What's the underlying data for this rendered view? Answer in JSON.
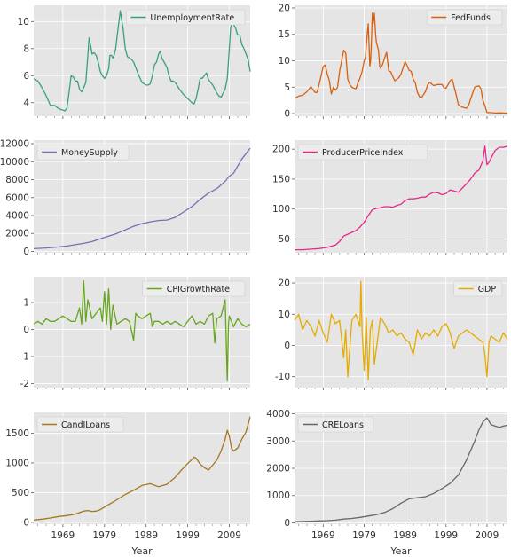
{
  "figure": {
    "background": "#ffffff",
    "panel_background": "#e5e5e5",
    "grid_color": "#ffffff",
    "xlabel": "Year"
  },
  "chart_data": [
    {
      "type": "line",
      "series": [
        {
          "name": "UnemploymentRate",
          "color": "#3a9e83"
        }
      ],
      "xlim": [
        1962,
        2014
      ],
      "ylim": [
        3.0,
        11.2
      ],
      "yticks": [
        4,
        6,
        8,
        10
      ],
      "xticks": [
        1969,
        1979,
        1989,
        1999,
        2009
      ],
      "grid": true,
      "legend": "top-right",
      "x": [
        1962.0,
        1963.0,
        1964.0,
        1965.0,
        1966.0,
        1967.0,
        1967.8,
        1968.5,
        1969.5,
        1970.0,
        1970.5,
        1971.0,
        1971.5,
        1972.0,
        1972.5,
        1973.0,
        1973.5,
        1974.0,
        1974.5,
        1975.0,
        1975.3,
        1975.7,
        1976.0,
        1976.5,
        1977.0,
        1977.5,
        1978.0,
        1978.5,
        1979.0,
        1979.5,
        1980.0,
        1980.3,
        1980.7,
        1981.0,
        1981.3,
        1981.7,
        1982.0,
        1982.4,
        1982.8,
        1983.0,
        1983.5,
        1984.0,
        1984.5,
        1985.0,
        1985.5,
        1986.0,
        1987.0,
        1988.0,
        1989.0,
        1989.5,
        1990.0,
        1990.5,
        1991.0,
        1991.5,
        1992.0,
        1992.4,
        1992.8,
        1993.5,
        1994.0,
        1994.5,
        1995.0,
        1995.5,
        1996.0,
        1997.0,
        1998.0,
        1999.0,
        2000.0,
        2000.5,
        2001.0,
        2001.5,
        2002.0,
        2002.5,
        2003.0,
        2003.5,
        2004.0,
        2004.5,
        2005.0,
        2005.5,
        2006.0,
        2006.5,
        2007.0,
        2007.5,
        2008.0,
        2008.5,
        2009.0,
        2009.3,
        2009.7,
        2010.0,
        2010.5,
        2011.0,
        2011.5,
        2012.0,
        2012.5,
        2013.0,
        2013.5,
        2014.0
      ],
      "y": [
        5.8,
        5.6,
        5.1,
        4.5,
        3.8,
        3.8,
        3.6,
        3.5,
        3.4,
        3.6,
        4.8,
        6.0,
        5.9,
        5.6,
        5.6,
        5.0,
        4.8,
        5.1,
        5.5,
        7.5,
        8.8,
        8.2,
        7.6,
        7.7,
        7.5,
        7.0,
        6.3,
        6.0,
        5.8,
        6.0,
        6.5,
        7.5,
        7.5,
        7.3,
        7.5,
        8.0,
        8.8,
        9.8,
        10.8,
        10.4,
        9.4,
        8.0,
        7.4,
        7.3,
        7.2,
        7.0,
        6.2,
        5.5,
        5.3,
        5.3,
        5.4,
        6.0,
        6.8,
        7.0,
        7.6,
        7.8,
        7.3,
        6.9,
        6.6,
        6.0,
        5.6,
        5.6,
        5.5,
        5.0,
        4.6,
        4.3,
        4.0,
        3.9,
        4.3,
        5.0,
        5.8,
        5.8,
        6.0,
        6.2,
        5.7,
        5.5,
        5.3,
        5.0,
        4.7,
        4.5,
        4.4,
        4.7,
        5.0,
        5.8,
        8.0,
        9.5,
        10.0,
        9.8,
        9.5,
        9.0,
        9.0,
        8.3,
        8.0,
        7.6,
        7.2,
        6.3
      ]
    },
    {
      "type": "line",
      "series": [
        {
          "name": "FedFunds",
          "color": "#d95f0e"
        }
      ],
      "xlim": [
        1962,
        2014
      ],
      "ylim": [
        -0.5,
        20.5
      ],
      "yticks": [
        0,
        5,
        10,
        15,
        20
      ],
      "xticks": [
        1969,
        1979,
        1989,
        1999,
        2009
      ],
      "grid": true,
      "legend": "top-right",
      "x": [
        1962.0,
        1963.0,
        1964.0,
        1965.0,
        1966.0,
        1967.0,
        1967.5,
        1968.0,
        1969.0,
        1969.5,
        1970.0,
        1970.5,
        1971.0,
        1971.5,
        1972.0,
        1972.5,
        1973.0,
        1973.5,
        1974.0,
        1974.5,
        1975.0,
        1975.5,
        1976.0,
        1976.5,
        1977.0,
        1977.5,
        1978.0,
        1978.5,
        1979.0,
        1979.3,
        1979.6,
        1980.0,
        1980.2,
        1980.4,
        1980.6,
        1980.8,
        1981.0,
        1981.2,
        1981.5,
        1981.8,
        1982.0,
        1982.5,
        1982.8,
        1983.0,
        1983.5,
        1984.0,
        1984.5,
        1985.0,
        1985.5,
        1986.0,
        1986.5,
        1987.0,
        1987.5,
        1988.0,
        1989.0,
        1989.5,
        1990.0,
        1990.5,
        1991.0,
        1991.5,
        1992.0,
        1992.5,
        1993.0,
        1994.0,
        1994.5,
        1995.0,
        1996.0,
        1997.0,
        1998.0,
        1998.5,
        1999.0,
        2000.0,
        2000.5,
        2001.0,
        2001.5,
        2002.0,
        2003.0,
        2004.0,
        2004.5,
        2005.0,
        2006.0,
        2007.0,
        2007.5,
        2008.0,
        2008.5,
        2009.0,
        2010.0,
        2011.0,
        2012.0,
        2013.0,
        2014.0
      ],
      "y": [
        2.9,
        3.3,
        3.5,
        4.1,
        5.1,
        4.0,
        4.0,
        5.5,
        8.9,
        9.2,
        7.5,
        6.3,
        3.7,
        5.0,
        4.4,
        5.0,
        8.0,
        10.0,
        12.0,
        11.5,
        6.5,
        5.5,
        5.0,
        4.8,
        4.7,
        5.8,
        6.7,
        8.0,
        10.0,
        10.5,
        13.5,
        17.0,
        13.0,
        9.0,
        10.0,
        14.0,
        19.0,
        17.0,
        19.0,
        15.0,
        13.5,
        12.0,
        9.0,
        8.6,
        9.3,
        10.5,
        11.6,
        8.1,
        7.9,
        7.0,
        6.2,
        6.5,
        6.8,
        7.5,
        9.8,
        9.1,
        8.2,
        8.0,
        6.5,
        5.8,
        4.0,
        3.2,
        3.0,
        4.2,
        5.4,
        5.9,
        5.3,
        5.5,
        5.5,
        4.9,
        4.8,
        6.2,
        6.5,
        5.0,
        3.5,
        1.7,
        1.2,
        1.0,
        1.5,
        2.8,
        5.0,
        5.25,
        4.8,
        2.5,
        1.5,
        0.2,
        0.18,
        0.1,
        0.14,
        0.11,
        0.09
      ]
    },
    {
      "type": "line",
      "series": [
        {
          "name": "MoneySupply",
          "color": "#7570b3"
        }
      ],
      "xlim": [
        1962,
        2014
      ],
      "ylim": [
        -150,
        12400
      ],
      "yticks": [
        0,
        2000,
        4000,
        6000,
        8000,
        10000,
        12000
      ],
      "xticks": [
        1969,
        1979,
        1989,
        1999,
        2009
      ],
      "grid": true,
      "legend": "top-left",
      "x": [
        1962,
        1964,
        1966,
        1968,
        1970,
        1972,
        1974,
        1976,
        1978,
        1980,
        1982,
        1984,
        1986,
        1988,
        1990,
        1992,
        1994,
        1996,
        1998,
        2000,
        2002,
        2004,
        2006,
        2008,
        2009,
        2010,
        2011,
        2012,
        2013,
        2014
      ],
      "y": [
        300,
        350,
        420,
        500,
        600,
        750,
        900,
        1100,
        1400,
        1700,
        2000,
        2400,
        2800,
        3100,
        3300,
        3450,
        3500,
        3800,
        4400,
        5000,
        5800,
        6500,
        7000,
        7800,
        8400,
        8700,
        9500,
        10300,
        10900,
        11500
      ]
    },
    {
      "type": "line",
      "series": [
        {
          "name": "ProducerPriceIndex",
          "color": "#e7298a"
        }
      ],
      "xlim": [
        1962,
        2014
      ],
      "ylim": [
        27,
        215
      ],
      "yticks": [
        50,
        100,
        150,
        200
      ],
      "xticks": [
        1969,
        1979,
        1989,
        1999,
        2009
      ],
      "grid": true,
      "legend": "top-left",
      "x": [
        1962,
        1964,
        1966,
        1968,
        1970,
        1972,
        1973,
        1974,
        1975,
        1976,
        1977,
        1978,
        1979,
        1980,
        1981,
        1982,
        1983,
        1984,
        1985,
        1986,
        1987,
        1988,
        1989,
        1990,
        1991,
        1992,
        1993,
        1994,
        1995,
        1996,
        1997,
        1998,
        1999,
        2000,
        2001,
        2002,
        2003,
        2004,
        2005,
        2006,
        2007,
        2008,
        2008.5,
        2009,
        2009.5,
        2010,
        2011,
        2012,
        2013,
        2014
      ],
      "y": [
        32,
        32,
        33,
        34,
        36,
        40,
        46,
        55,
        58,
        61,
        64,
        70,
        78,
        89,
        99,
        101,
        102,
        104,
        104,
        103,
        106,
        108,
        114,
        117,
        117,
        118,
        120,
        120,
        125,
        128,
        127,
        124,
        126,
        132,
        130,
        128,
        135,
        142,
        150,
        160,
        165,
        180,
        205,
        174,
        178,
        185,
        198,
        203,
        203,
        205
      ]
    },
    {
      "type": "line",
      "series": [
        {
          "name": "CPIGrowthRate",
          "color": "#66a61e"
        }
      ],
      "xlim": [
        1962,
        2014
      ],
      "ylim": [
        -2.15,
        1.95
      ],
      "yticks": [
        -2,
        -1,
        0,
        1
      ],
      "xticks": [
        1969,
        1979,
        1989,
        1999,
        2009
      ],
      "grid": true,
      "legend": "top-right",
      "x": [
        1962.0,
        1963.0,
        1964.0,
        1965.0,
        1966.0,
        1967.0,
        1968.0,
        1969.0,
        1970.0,
        1971.0,
        1972.0,
        1973.0,
        1973.5,
        1974.0,
        1974.5,
        1975.0,
        1976.0,
        1977.0,
        1978.0,
        1978.5,
        1979.0,
        1979.5,
        1980.0,
        1980.5,
        1981.0,
        1982.0,
        1983.0,
        1984.0,
        1985.0,
        1986.0,
        1986.5,
        1987.0,
        1988.0,
        1989.0,
        1990.0,
        1990.5,
        1991.0,
        1992.0,
        1993.0,
        1994.0,
        1995.0,
        1996.0,
        1997.0,
        1998.0,
        1999.0,
        2000.0,
        2001.0,
        2002.0,
        2003.0,
        2004.0,
        2005.0,
        2005.5,
        2006.0,
        2007.0,
        2008.0,
        2008.5,
        2008.8,
        2009.0,
        2009.5,
        2010.0,
        2011.0,
        2012.0,
        2013.0,
        2014.0
      ],
      "y": [
        0.2,
        0.3,
        0.2,
        0.4,
        0.3,
        0.3,
        0.4,
        0.5,
        0.4,
        0.3,
        0.3,
        0.8,
        0.2,
        1.8,
        0.3,
        1.1,
        0.4,
        0.6,
        0.8,
        0.3,
        1.4,
        0.2,
        1.5,
        0.0,
        0.9,
        0.2,
        0.3,
        0.4,
        0.3,
        -0.4,
        0.6,
        0.5,
        0.4,
        0.5,
        0.6,
        0.1,
        0.3,
        0.3,
        0.2,
        0.3,
        0.2,
        0.3,
        0.2,
        0.1,
        0.3,
        0.5,
        0.2,
        0.3,
        0.2,
        0.5,
        0.6,
        -0.5,
        0.4,
        0.5,
        1.1,
        -1.9,
        0.2,
        0.5,
        0.3,
        0.1,
        0.4,
        0.2,
        0.1,
        0.2
      ]
    },
    {
      "type": "line",
      "series": [
        {
          "name": "GDP",
          "color": "#e6ab02"
        }
      ],
      "xlim": [
        1962,
        2014
      ],
      "ylim": [
        -13.5,
        22
      ],
      "yticks": [
        -10,
        0,
        10,
        20
      ],
      "xticks": [
        1969,
        1979,
        1989,
        1999,
        2009
      ],
      "grid": true,
      "legend": "top-right",
      "x": [
        1962.0,
        1963.0,
        1964.0,
        1965.0,
        1966.0,
        1967.0,
        1968.0,
        1969.0,
        1970.0,
        1971.0,
        1972.0,
        1973.0,
        1974.0,
        1974.5,
        1975.0,
        1976.0,
        1977.0,
        1978.0,
        1978.2,
        1978.5,
        1979.0,
        1979.5,
        1980.0,
        1980.5,
        1981.0,
        1981.5,
        1982.0,
        1983.0,
        1984.0,
        1985.0,
        1986.0,
        1987.0,
        1988.0,
        1989.0,
        1990.0,
        1991.0,
        1992.0,
        1993.0,
        1994.0,
        1995.0,
        1996.0,
        1997.0,
        1998.0,
        1999.0,
        2000.0,
        2001.0,
        2002.0,
        2003.0,
        2004.0,
        2005.0,
        2006.0,
        2007.0,
        2008.0,
        2008.5,
        2009.0,
        2009.5,
        2010.0,
        2011.0,
        2012.0,
        2013.0,
        2014.0
      ],
      "y": [
        8,
        10,
        5,
        8,
        6,
        3,
        8,
        4,
        1,
        10,
        7,
        8,
        -4,
        5,
        -10,
        8,
        10,
        6,
        20.5,
        4,
        -8,
        9,
        -11,
        5,
        8,
        -6,
        -1,
        9,
        7,
        4,
        5,
        3,
        4,
        2,
        1,
        -3,
        5,
        2,
        4,
        3,
        5,
        3,
        6,
        7,
        4,
        -1,
        3,
        4,
        5,
        4,
        3,
        2,
        1,
        -3,
        -10,
        1,
        3,
        2,
        1,
        4,
        2
      ]
    },
    {
      "type": "line",
      "series": [
        {
          "name": "CandILoans",
          "color": "#a6761d"
        }
      ],
      "xlim": [
        1962,
        2014
      ],
      "ylim": [
        -30,
        1850
      ],
      "yticks": [
        0,
        500,
        1000,
        1500
      ],
      "xticks": [
        1969,
        1979,
        1989,
        1999,
        2009
      ],
      "grid": true,
      "legend": "top-left",
      "x": [
        1962,
        1964,
        1966,
        1968,
        1970,
        1972,
        1974,
        1975,
        1976,
        1977,
        1978,
        1980,
        1982,
        1984,
        1986,
        1988,
        1990,
        1992,
        1994,
        1996,
        1998,
        2000,
        2000.5,
        2001,
        2002,
        2003,
        2004,
        2006,
        2007,
        2008,
        2008.5,
        2009,
        2009.5,
        2010,
        2011,
        2012,
        2013,
        2014
      ],
      "y": [
        40,
        55,
        75,
        100,
        115,
        140,
        190,
        200,
        185,
        190,
        215,
        300,
        380,
        470,
        540,
        620,
        650,
        600,
        640,
        760,
        920,
        1060,
        1100,
        1080,
        980,
        920,
        880,
        1050,
        1200,
        1400,
        1550,
        1450,
        1250,
        1200,
        1250,
        1400,
        1520,
        1780
      ]
    },
    {
      "type": "line",
      "series": [
        {
          "name": "CRELoans",
          "color": "#666666"
        }
      ],
      "xlim": [
        1962,
        2014
      ],
      "ylim": [
        -50,
        4050
      ],
      "yticks": [
        0,
        1000,
        2000,
        3000,
        4000
      ],
      "xticks": [
        1969,
        1979,
        1989,
        1999,
        2009
      ],
      "grid": true,
      "legend": "top-left",
      "x": [
        1962,
        1964,
        1966,
        1968,
        1970,
        1972,
        1974,
        1976,
        1978,
        1980,
        1982,
        1984,
        1986,
        1988,
        1990,
        1992,
        1994,
        1996,
        1998,
        2000,
        2002,
        2004,
        2006,
        2007,
        2008,
        2009,
        2010,
        2011,
        2012,
        2013,
        2014
      ],
      "y": [
        40,
        50,
        60,
        70,
        80,
        100,
        140,
        160,
        200,
        250,
        300,
        380,
        520,
        720,
        880,
        920,
        960,
        1080,
        1250,
        1450,
        1750,
        2300,
        3000,
        3400,
        3700,
        3850,
        3600,
        3550,
        3500,
        3550,
        3580
      ]
    }
  ]
}
